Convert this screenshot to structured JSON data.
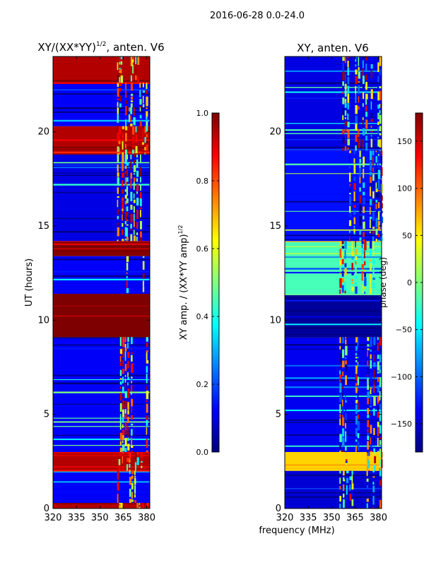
{
  "figure_title": "2016-06-28 0.0-24.0",
  "shared_xlabel": "frequency (MHz)",
  "colormap": "jet",
  "colormap_stops": [
    "#00007f",
    "#0000ff",
    "#007fff",
    "#00ffff",
    "#7fff7f",
    "#ffff00",
    "#ff7f00",
    "#ff0000",
    "#7f0000"
  ],
  "chart_data": [
    {
      "type": "heatmap",
      "title_base": "XY/(XX*YY)",
      "title_exponent": "1/2",
      "title_suffix": ", anten. V6",
      "xlabel": "",
      "ylabel": "UT (hours)",
      "xlim": [
        320,
        382
      ],
      "ylim": [
        0,
        24
      ],
      "xticks": [
        320,
        335,
        350,
        365,
        380
      ],
      "yticks": [
        0,
        5,
        10,
        15,
        20
      ],
      "colorbar": {
        "label_base": "XY amp. / (XX*YY amp)",
        "label_exponent": "1/2",
        "range": [
          0.0,
          1.0
        ],
        "ticks": [
          0.0,
          0.2,
          0.4,
          0.6,
          0.8,
          1.0
        ],
        "tick_labels": [
          "0.0",
          "0.2",
          "0.4",
          "0.6",
          "0.8",
          "1.0"
        ]
      },
      "bands": [
        {
          "from": 0.0,
          "to": 0.3,
          "value": 0.95
        },
        {
          "from": 0.3,
          "to": 2.0,
          "value": 0.12
        },
        {
          "from": 2.0,
          "to": 3.0,
          "value": 0.95
        },
        {
          "from": 3.0,
          "to": 9.1,
          "value": 0.12
        },
        {
          "from": 9.1,
          "to": 11.4,
          "value": 1.0
        },
        {
          "from": 11.4,
          "to": 13.4,
          "value": 0.12
        },
        {
          "from": 13.4,
          "to": 14.2,
          "value": 1.0
        },
        {
          "from": 14.2,
          "to": 18.8,
          "value": 0.1
        },
        {
          "from": 18.8,
          "to": 20.3,
          "value": 0.95
        },
        {
          "from": 20.3,
          "to": 21.3,
          "value": 0.12
        },
        {
          "from": 21.3,
          "to": 22.6,
          "value": 0.12
        },
        {
          "from": 22.6,
          "to": 24.0,
          "value": 0.95
        }
      ],
      "active_channels": {
        "from": 361,
        "to": 380
      }
    },
    {
      "type": "heatmap",
      "title": "XY, anten. V6",
      "xlabel": "frequency (MHz)",
      "ylabel": "",
      "xlim": [
        320,
        382
      ],
      "ylim": [
        0,
        24
      ],
      "xticks": [
        320,
        335,
        350,
        365,
        380
      ],
      "yticks": [
        0,
        5,
        10,
        15,
        20
      ],
      "colorbar": {
        "label": "phase (deg)",
        "range": [
          -180,
          180
        ],
        "ticks": [
          -150,
          -100,
          -50,
          0,
          50,
          100,
          150
        ],
        "tick_labels": [
          "−150",
          "−100",
          "−50",
          "0",
          "50",
          "100",
          "150"
        ]
      },
      "bands": [
        {
          "from": 0.0,
          "to": 2.0,
          "value": -150
        },
        {
          "from": 2.0,
          "to": 3.0,
          "value": 60
        },
        {
          "from": 3.0,
          "to": 9.1,
          "value": -140
        },
        {
          "from": 9.1,
          "to": 11.4,
          "value": -170
        },
        {
          "from": 11.4,
          "to": 14.2,
          "value": -20
        },
        {
          "from": 14.2,
          "to": 19.0,
          "value": -130
        },
        {
          "from": 19.0,
          "to": 24.0,
          "value": -145
        }
      ],
      "active_channels": {
        "from": 355,
        "to": 382
      }
    }
  ]
}
